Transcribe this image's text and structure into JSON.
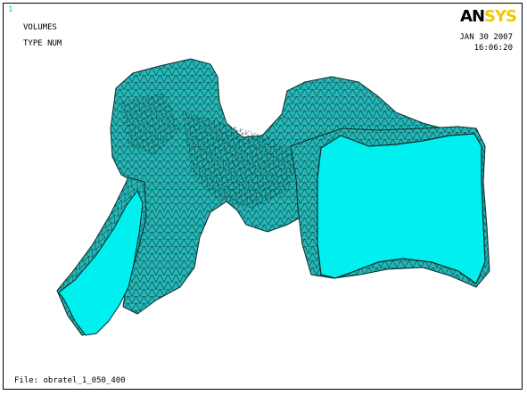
{
  "window": {
    "number": "1"
  },
  "labels": {
    "line1": "VOLUMES",
    "line2": "TYPE NUM"
  },
  "stamp": {
    "date": "JAN 30 2007",
    "time": "16:06:20"
  },
  "logo": {
    "an": "AN",
    "sys": "SYS"
  },
  "footer": {
    "file": "File: obratel_1_050_400"
  },
  "colors": {
    "mesh_fill": "#25b7b7",
    "face_fill": "#00f0f0",
    "edge": "#0a2a2a",
    "logo_accent": "#f0c800"
  }
}
